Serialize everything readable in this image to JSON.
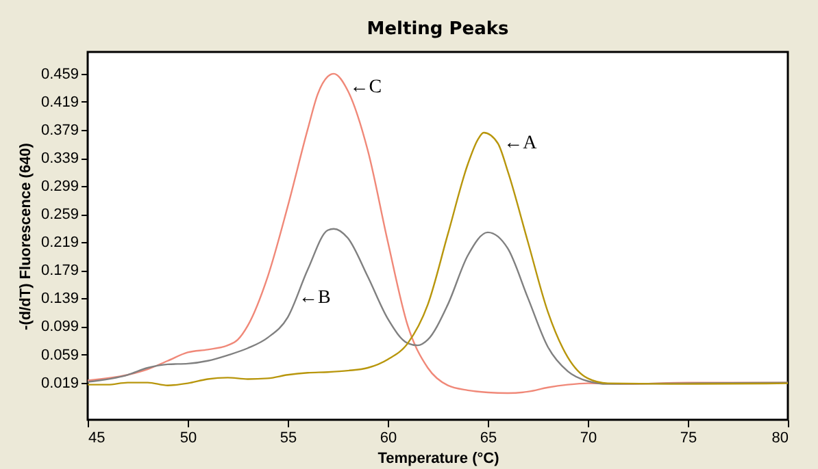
{
  "chart_data": {
    "type": "line",
    "title": "Melting Peaks",
    "xlabel": "Temperature (°C)",
    "ylabel": "-(d/dT) Fluorescence (640)",
    "xlim": [
      45,
      80
    ],
    "xticks": [
      45,
      50,
      55,
      60,
      65,
      70,
      75,
      80
    ],
    "ylim": [
      -0.034,
      0.49
    ],
    "yticks": [
      0.019,
      0.059,
      0.099,
      0.139,
      0.179,
      0.219,
      0.259,
      0.299,
      0.339,
      0.379,
      0.419,
      0.459
    ],
    "grid": false,
    "legend": false,
    "series": [
      {
        "color": "#f08878",
        "x": [
          45,
          47,
          48,
          49,
          50,
          51,
          52,
          52.5,
          53,
          54,
          55,
          56,
          56.5,
          57,
          57.3,
          58,
          59,
          60,
          61,
          62,
          63,
          64,
          65,
          66,
          67,
          68,
          69,
          70,
          72,
          75,
          80
        ],
        "values": [
          0.022,
          0.03,
          0.038,
          0.05,
          0.062,
          0.066,
          0.072,
          0.08,
          0.1,
          0.17,
          0.27,
          0.38,
          0.43,
          0.455,
          0.459,
          0.435,
          0.35,
          0.22,
          0.1,
          0.04,
          0.015,
          0.008,
          0.005,
          0.004,
          0.006,
          0.012,
          0.016,
          0.018,
          0.017,
          0.019,
          0.019
        ]
      },
      {
        "color": "#808080",
        "x": [
          45,
          47,
          48,
          49,
          50,
          51,
          52,
          53,
          54,
          55,
          56,
          57,
          57.3,
          58,
          59,
          60,
          61,
          61.5,
          62,
          63,
          64,
          65,
          66,
          67,
          68,
          69,
          70,
          71,
          75,
          80
        ],
        "values": [
          0.02,
          0.03,
          0.04,
          0.045,
          0.046,
          0.05,
          0.058,
          0.068,
          0.083,
          0.112,
          0.18,
          0.236,
          0.238,
          0.225,
          0.17,
          0.11,
          0.075,
          0.072,
          0.08,
          0.13,
          0.2,
          0.233,
          0.21,
          0.14,
          0.07,
          0.035,
          0.021,
          0.017,
          0.018,
          0.019
        ]
      },
      {
        "color": "#b8960c",
        "x": [
          45,
          46,
          47,
          48,
          49,
          50,
          51,
          52,
          53,
          54,
          55,
          56,
          57,
          58,
          59,
          60,
          61,
          62,
          63,
          64,
          64.5,
          64.8,
          65.5,
          66,
          67,
          68,
          69,
          70,
          71,
          75,
          80
        ],
        "values": [
          0.016,
          0.016,
          0.019,
          0.019,
          0.015,
          0.018,
          0.024,
          0.026,
          0.024,
          0.025,
          0.03,
          0.033,
          0.034,
          0.036,
          0.04,
          0.052,
          0.075,
          0.13,
          0.23,
          0.33,
          0.365,
          0.375,
          0.36,
          0.32,
          0.22,
          0.12,
          0.055,
          0.025,
          0.018,
          0.017,
          0.018
        ]
      }
    ],
    "annotations": [
      {
        "text": "←C",
        "x": 58.1,
        "y": 0.44
      },
      {
        "text": "←A",
        "x": 65.8,
        "y": 0.36
      },
      {
        "text": "←B",
        "x": 55.55,
        "y": 0.14
      }
    ]
  }
}
